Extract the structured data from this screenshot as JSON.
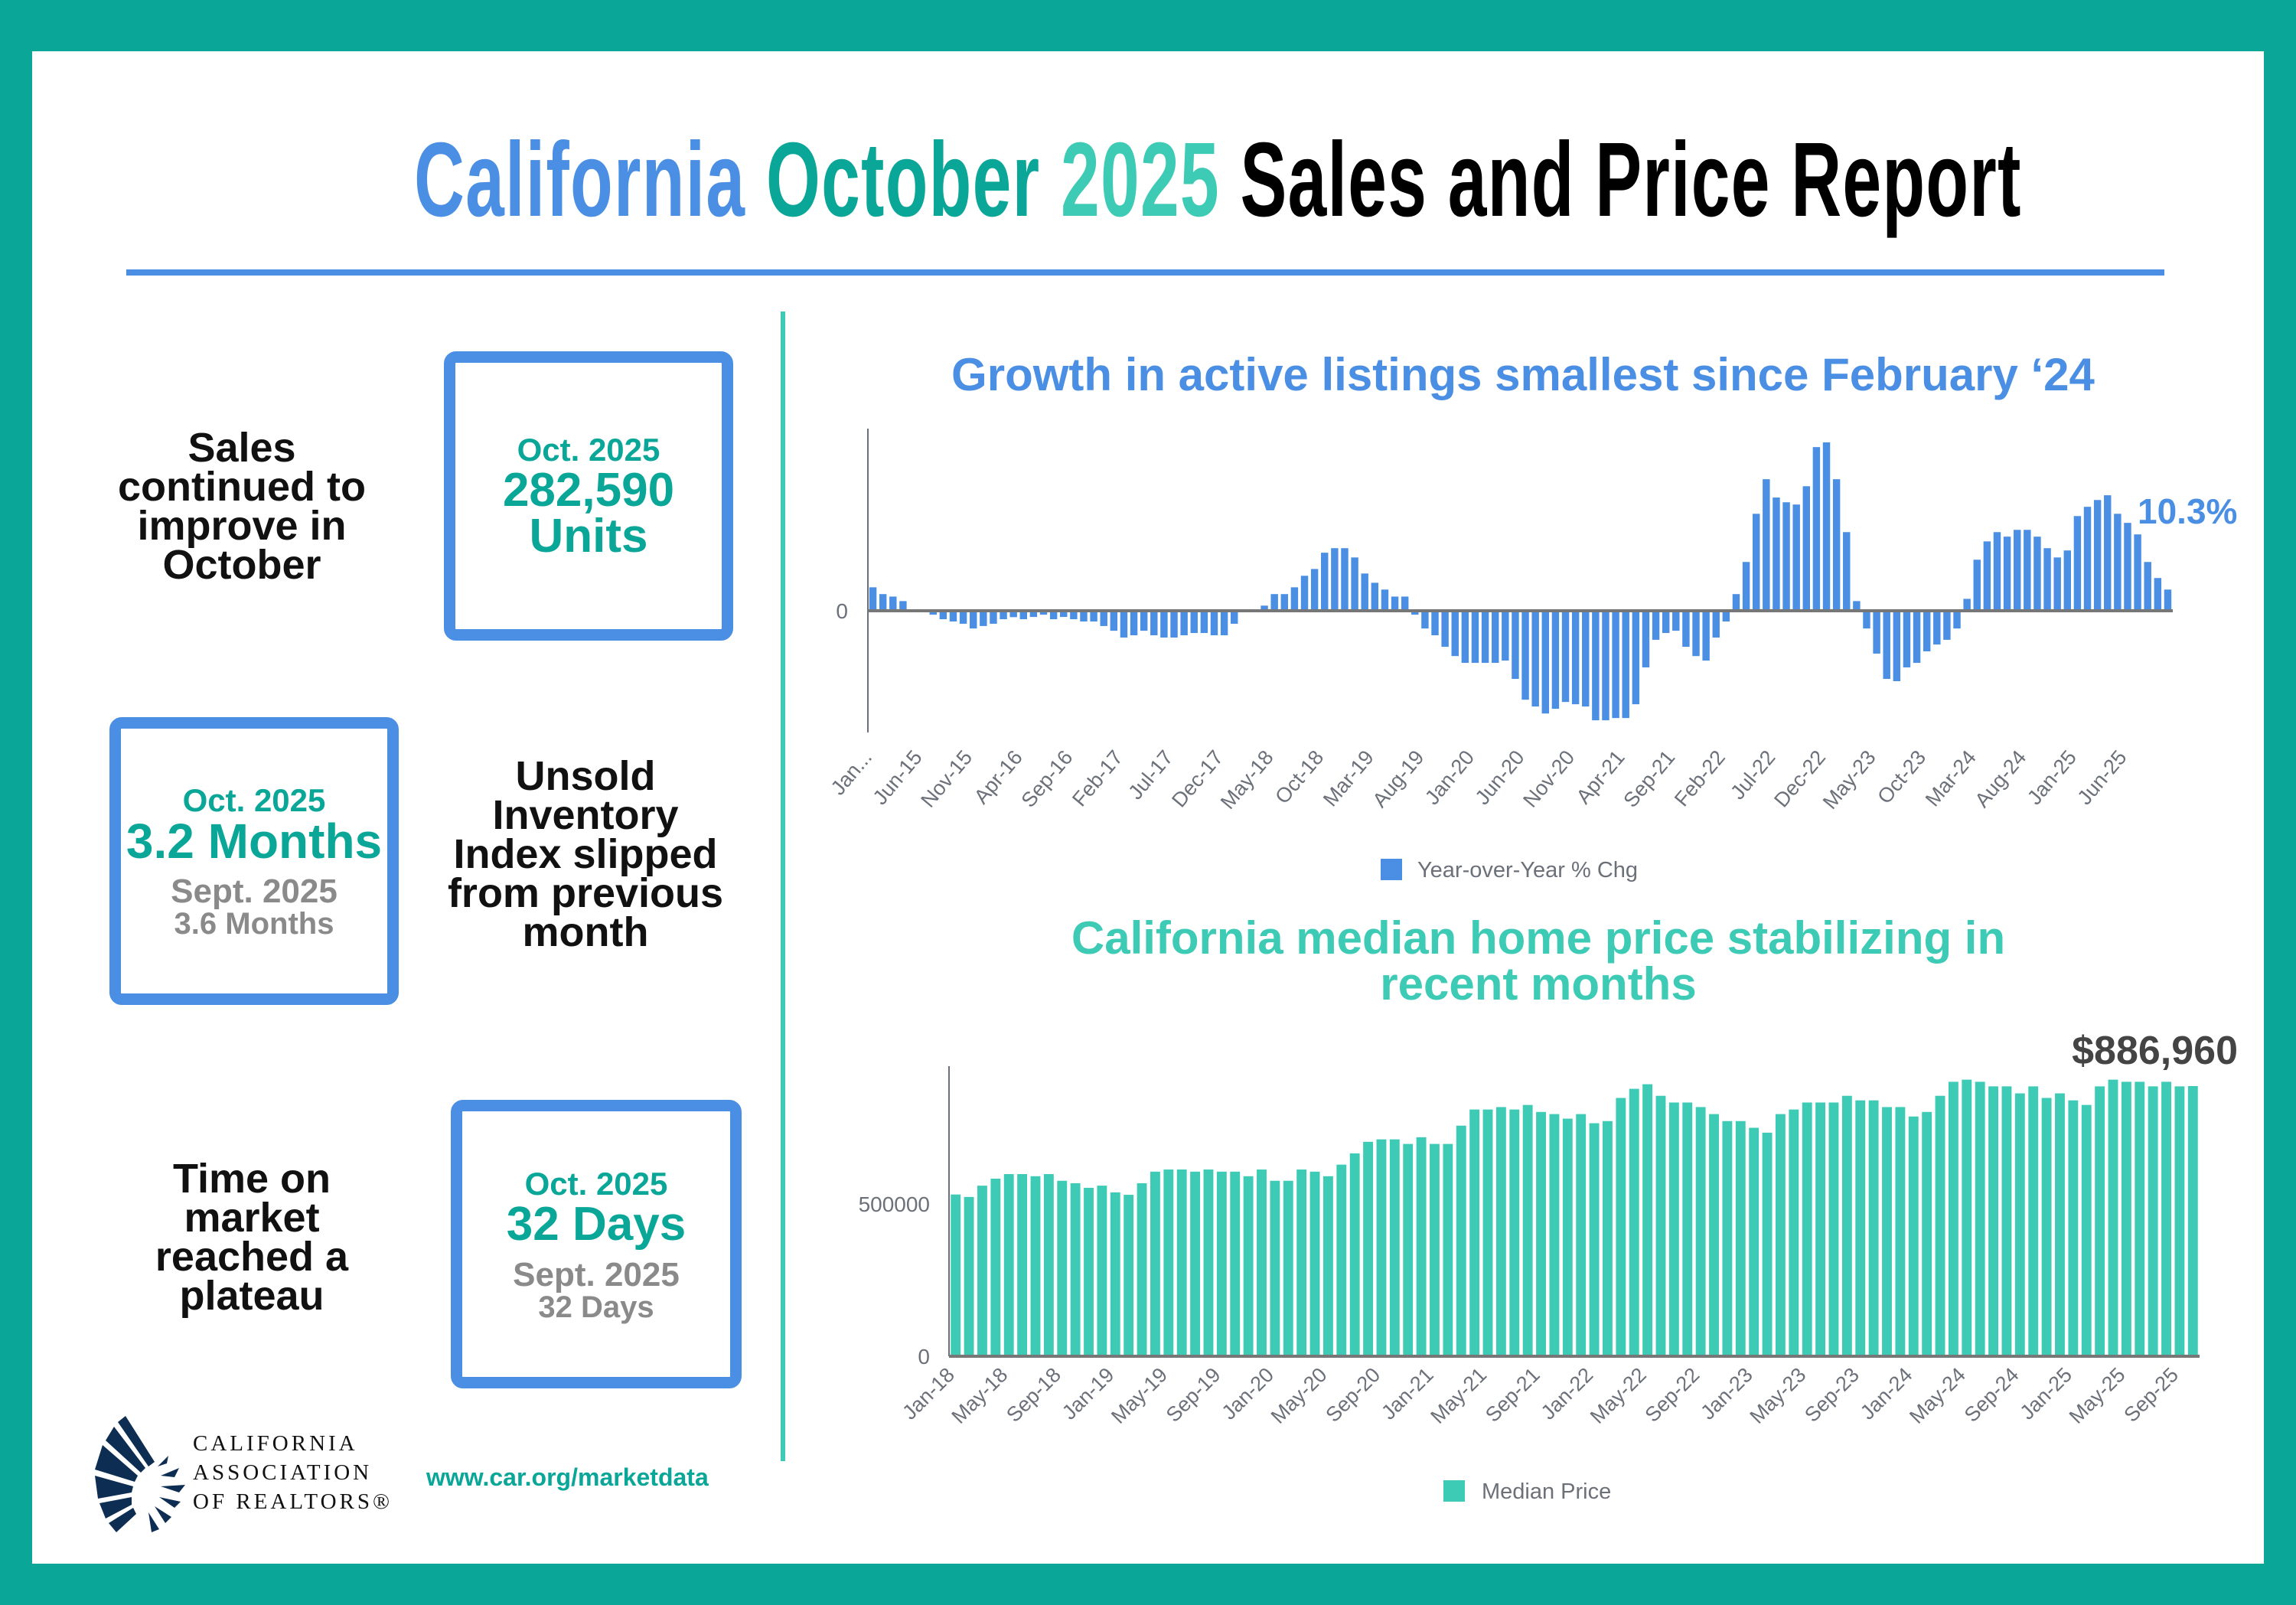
{
  "header": {
    "title_parts": [
      "California",
      "October",
      "2025",
      "Sales and Price Report"
    ]
  },
  "colors": {
    "frame": "#0aa698",
    "blue": "#4a8fe3",
    "teal": "#0aa698",
    "light_teal": "#3ecbb5"
  },
  "left": {
    "sales": {
      "caption_lines": [
        "Sales",
        "continued to",
        "improve in",
        "October"
      ],
      "period": "Oct. 2025",
      "value": "282,590",
      "unit": "Units"
    },
    "inventory": {
      "caption_lines": [
        "Unsold",
        "Inventory",
        "Index slipped",
        "from previous",
        "month"
      ],
      "period": "Oct. 2025",
      "value": "3.2 Months",
      "prev_period": "Sept. 2025",
      "prev_value": "3.6 Months"
    },
    "time_on_market": {
      "caption_lines": [
        "Time on",
        "market",
        "reached a",
        "plateau"
      ],
      "period": "Oct. 2025",
      "value": "32 Days",
      "prev_period": "Sept. 2025",
      "prev_value": "32 Days"
    },
    "logo_lines": [
      "CALIFORNIA",
      "ASSOCIATION",
      "OF REALTORS®"
    ],
    "url": "www.car.org/marketdata"
  },
  "chart_data": [
    {
      "type": "bar",
      "title": "Growth in active listings smallest since February ‘24",
      "series_name": "Year-over-Year % Chg",
      "color": "#4a8fe3",
      "y_tick_labels": [
        "0"
      ],
      "annotation": "10.3%",
      "x_tick_labels": [
        "Jan...",
        "Jun-15",
        "Nov-15",
        "Apr-16",
        "Sep-16",
        "Feb-17",
        "Jul-17",
        "Dec-17",
        "May-18",
        "Oct-18",
        "Mar-19",
        "Aug-19",
        "Jan-20",
        "Jun-20",
        "Nov-20",
        "Apr-21",
        "Sep-21",
        "Feb-22",
        "Jul-22",
        "Dec-22",
        "May-23",
        "Oct-23",
        "Mar-24",
        "Aug-24",
        "Jan-25",
        "Jun-25"
      ],
      "x_tick_every": 5,
      "values": [
        11.4,
        8.1,
        6.9,
        4.7,
        0.3,
        0.3,
        -1.9,
        -4.1,
        -5.2,
        -6.3,
        -8.6,
        -7.4,
        -6.3,
        -4.1,
        -3.1,
        -4.1,
        -3.0,
        -1.9,
        -4.1,
        -3.0,
        -4.1,
        -5.2,
        -5.2,
        -7.4,
        -9.7,
        -13.0,
        -11.9,
        -9.7,
        -11.9,
        -13.0,
        -13.0,
        -11.9,
        -10.8,
        -10.8,
        -11.9,
        -11.9,
        -6.3,
        -0.3,
        0.5,
        2.5,
        8.1,
        8.1,
        11.4,
        17.0,
        20.3,
        28.2,
        30.4,
        30.4,
        25.9,
        18.1,
        13.6,
        10.3,
        6.9,
        6.9,
        -1.9,
        -8.6,
        -11.9,
        -17.5,
        -22.0,
        -25.3,
        -25.3,
        -25.3,
        -25.3,
        -24.2,
        -33.1,
        -43.2,
        -46.5,
        -49.9,
        -47.6,
        -44.3,
        -45.4,
        -46.5,
        -53.2,
        -53.2,
        -52.1,
        -52.1,
        -45.4,
        -27.5,
        -14.1,
        -10.8,
        -9.7,
        -17.5,
        -22.0,
        -24.2,
        -13.0,
        -5.2,
        8.1,
        23.7,
        47.1,
        63.9,
        55.0,
        52.7,
        51.6,
        60.5,
        79.5,
        81.8,
        63.9,
        38.2,
        4.7,
        -8.6,
        -20.8,
        -33.1,
        -34.2,
        -27.5,
        -25.3,
        -19.7,
        -16.4,
        -14.1,
        -8.6,
        5.8,
        24.8,
        33.7,
        38.2,
        36.0,
        39.3,
        39.3,
        36.0,
        30.4,
        25.9,
        29.3,
        46.0,
        50.5,
        53.8,
        56.1,
        47.1,
        42.7,
        37.1,
        23.7,
        15.9,
        10.3
      ],
      "legend": "bottom",
      "grid": false
    },
    {
      "type": "bar",
      "title_lines": [
        "California median home price stabilizing in",
        "recent months"
      ],
      "series_name": "Median Price",
      "color": "#3ecbb5",
      "y_tick_labels": [
        "0",
        "500000"
      ],
      "ylim": [
        0,
        1000000
      ],
      "annotation": "$886,960",
      "x_tick_labels": [
        "Jan-18",
        "May-18",
        "Sep-18",
        "Jan-19",
        "May-19",
        "Sep-19",
        "Jan-20",
        "May-20",
        "Sep-20",
        "Jan-21",
        "May-21",
        "Sep-21",
        "Jan-22",
        "May-22",
        "Sep-22",
        "Jan-23",
        "May-23",
        "Sep-23",
        "Jan-24",
        "May-24",
        "Sep-24",
        "Jan-25",
        "May-25",
        "Sep-25"
      ],
      "x_tick_every": 4,
      "values": [
        531000,
        523000,
        560000,
        583000,
        598000,
        598000,
        591000,
        598000,
        576000,
        568000,
        553000,
        560000,
        538000,
        530000,
        568000,
        606000,
        613000,
        613000,
        606000,
        613000,
        606000,
        606000,
        591000,
        613000,
        576000,
        576000,
        613000,
        606000,
        591000,
        629000,
        666000,
        704000,
        712000,
        712000,
        697000,
        719000,
        697000,
        697000,
        757000,
        810000,
        810000,
        818000,
        810000,
        825000,
        802000,
        795000,
        780000,
        795000,
        765000,
        772000,
        848000,
        878000,
        893000,
        855000,
        833000,
        833000,
        818000,
        795000,
        772000,
        772000,
        750000,
        734000,
        795000,
        810000,
        833000,
        833000,
        833000,
        855000,
        840000,
        840000,
        818000,
        818000,
        787000,
        802000,
        855000,
        901000,
        908000,
        901000,
        886000,
        886000,
        863000,
        886000,
        848000,
        863000,
        840000,
        825000,
        886000,
        908000,
        901000,
        901000,
        886000,
        901000,
        886000,
        886960
      ],
      "legend": "bottom",
      "grid": false
    }
  ]
}
